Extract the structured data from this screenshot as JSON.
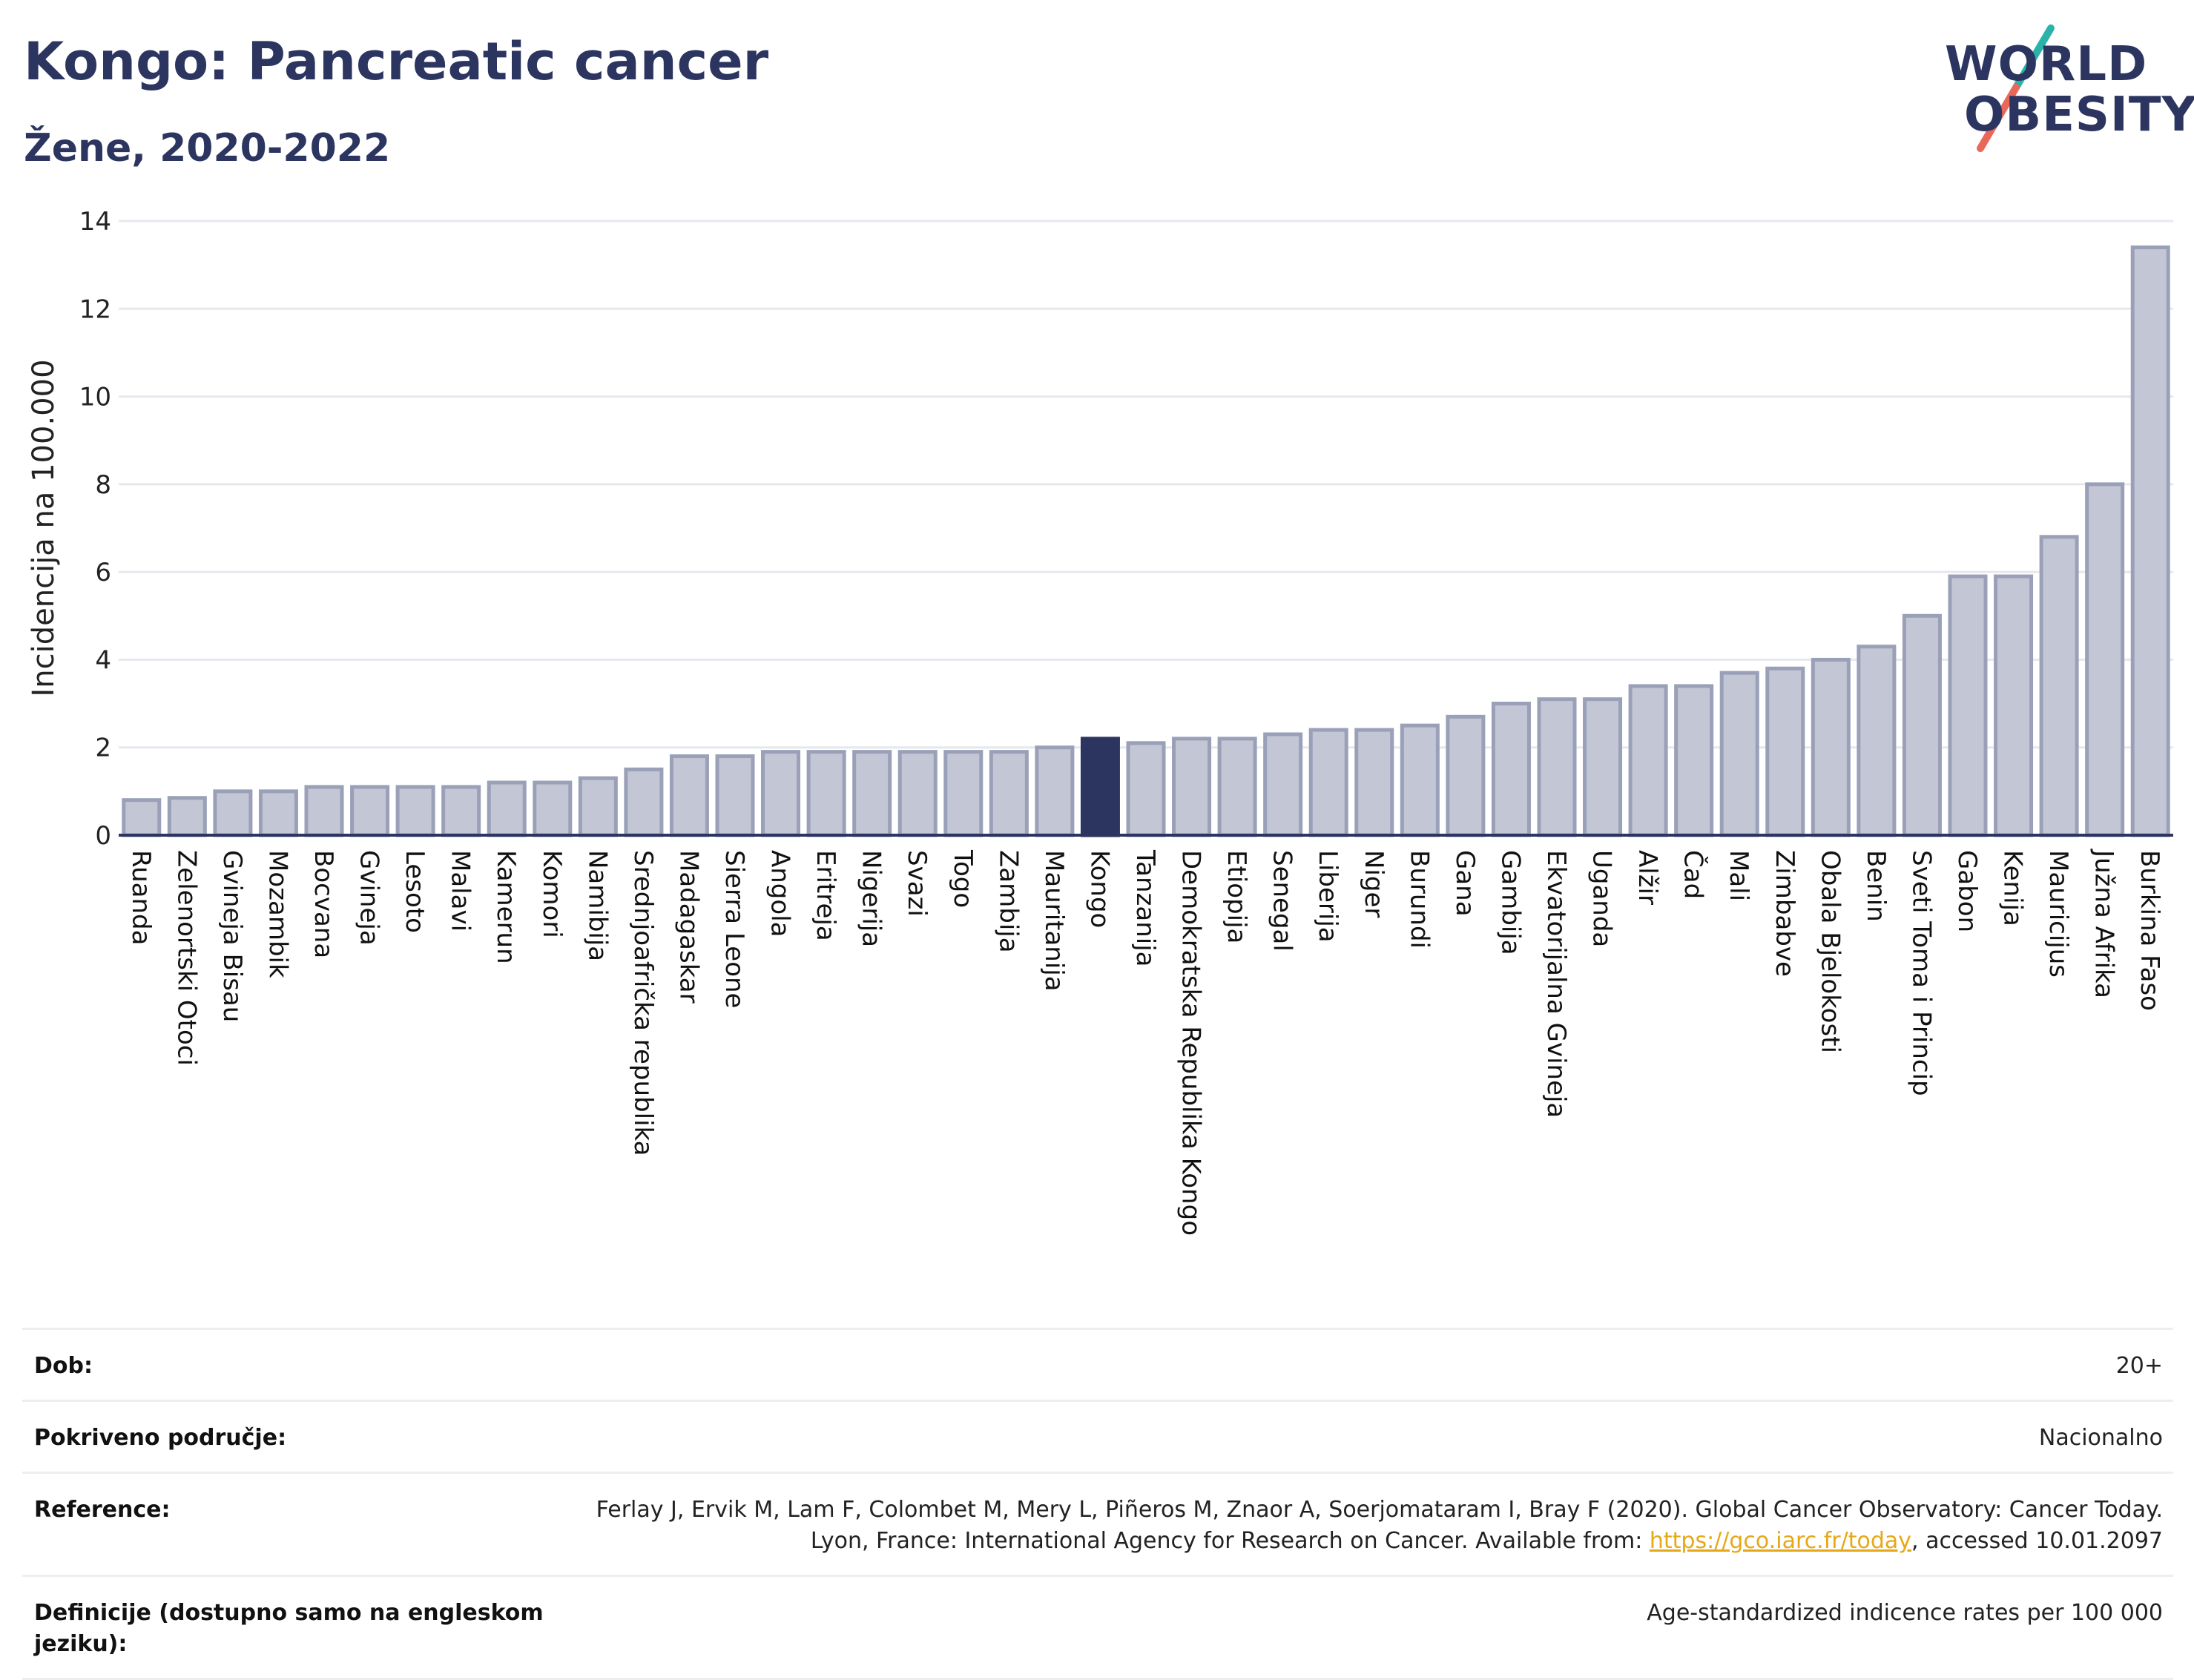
{
  "header": {
    "title": "Kongo: Pancreatic cancer",
    "subtitle": "Žene, 2020-2022"
  },
  "logo": {
    "line1": "WORLD",
    "line2": "OBESITY",
    "colors": {
      "text": "#2b3560",
      "slash_top": "#2ab3a8",
      "slash_bottom": "#e8685a"
    }
  },
  "chart_data": {
    "type": "bar",
    "ylabel": "Incidencija na 100.000",
    "xlabel": "",
    "ylim": [
      0,
      14
    ],
    "yticks": [
      0,
      2,
      4,
      6,
      8,
      10,
      12,
      14
    ],
    "grid": true,
    "highlight": "Kongo",
    "colors": {
      "bar": "#c3c6d4",
      "bar_border": "#9aa0b8",
      "highlight": "#2b3560"
    },
    "categories": [
      "Ruanda",
      "Zelenortski Otoci",
      "Gvineja Bisau",
      "Mozambik",
      "Bocvana",
      "Gvineja",
      "Lesoto",
      "Malavi",
      "Kamerun",
      "Komori",
      "Namibija",
      "Srednjoafrička republika",
      "Madagaskar",
      "Sierra Leone",
      "Angola",
      "Eritreja",
      "Nigerija",
      "Svazi",
      "Togo",
      "Zambija",
      "Mauritanija",
      "Kongo",
      "Tanzanija",
      "Demokratska Republika Kongo",
      "Etiopija",
      "Senegal",
      "Liberija",
      "Niger",
      "Burundi",
      "Gana",
      "Gambija",
      "Ekvatorijalna Gvineja",
      "Uganda",
      "Alžir",
      "Čad",
      "Mali",
      "Zimbabve",
      "Obala Bjelokosti",
      "Benin",
      "Sveti Toma i Princip",
      "Gabon",
      "Kenija",
      "Mauricijus",
      "Južna Afrika",
      "Burkina Faso"
    ],
    "values": [
      0.8,
      0.85,
      1.0,
      1.0,
      1.1,
      1.1,
      1.1,
      1.1,
      1.2,
      1.2,
      1.3,
      1.5,
      1.8,
      1.8,
      1.9,
      1.9,
      1.9,
      1.9,
      1.9,
      1.9,
      2.0,
      2.2,
      2.1,
      2.2,
      2.2,
      2.3,
      2.4,
      2.4,
      2.5,
      2.7,
      3.0,
      3.1,
      3.1,
      3.4,
      3.4,
      3.7,
      3.8,
      4.0,
      4.3,
      5.0,
      5.9,
      5.9,
      6.8,
      8.0,
      13.4
    ]
  },
  "info": {
    "rows": [
      {
        "label": "Dob:",
        "value": "20+"
      },
      {
        "label": "Pokriveno područje:",
        "value": "Nacionalno"
      },
      {
        "label": "Reference:",
        "value_before": "Ferlay J, Ervik M, Lam F, Colombet M, Mery L, Piñeros M, Znaor A, Soerjomataram I, Bray F (2020). Global Cancer Observatory: Cancer Today. Lyon, France: International Agency for Research on Cancer. Available from: ",
        "link": "https://gco.iarc.fr/today",
        "value_after": ", accessed 10.01.2097"
      },
      {
        "label": "Definicije (dostupno samo na engleskom jeziku):",
        "value": "Age-standardized indicence rates per 100 000"
      }
    ]
  }
}
